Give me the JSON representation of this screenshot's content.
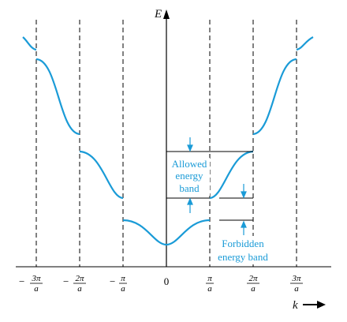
{
  "figure": {
    "y_axis_label": "E",
    "x_axis_label": "k",
    "ticks": [
      {
        "sign": "−",
        "num": "3π",
        "den": "a"
      },
      {
        "sign": "−",
        "num": "2π",
        "den": "a"
      },
      {
        "sign": "−",
        "num": "π",
        "den": "a"
      },
      {
        "sign": "",
        "num": "0",
        "den": ""
      },
      {
        "sign": "",
        "num": "π",
        "den": "a"
      },
      {
        "sign": "",
        "num": "2π",
        "den": "a"
      },
      {
        "sign": "",
        "num": "3π",
        "den": "a"
      }
    ],
    "allowed_label": [
      "Allowed",
      "energy",
      "band"
    ],
    "forbidden_label": [
      "Forbidden",
      "energy band"
    ],
    "colors": {
      "curve": "#1a9bd7",
      "axis": "#000000",
      "annotation": "#1a9bd7"
    }
  }
}
